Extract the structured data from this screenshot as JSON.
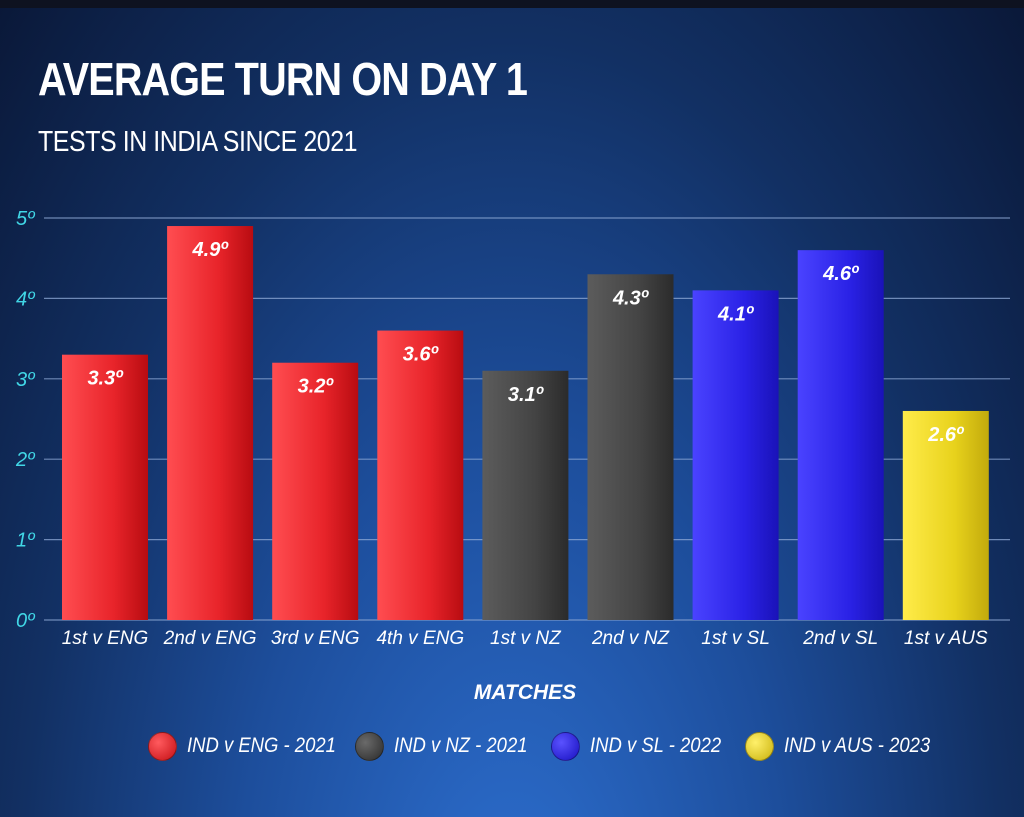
{
  "chart_data": {
    "type": "bar",
    "title": "AVERAGE TURN ON DAY 1",
    "subtitle": "TESTS IN INDIA SINCE 2021",
    "xlabel": "MATCHES",
    "ylabel": "",
    "ylim": [
      0,
      5
    ],
    "y_ticks": [
      {
        "value": 0,
        "label": "0º"
      },
      {
        "value": 1,
        "label": "1º"
      },
      {
        "value": 2,
        "label": "2º"
      },
      {
        "value": 3,
        "label": "3º"
      },
      {
        "value": 4,
        "label": "4º"
      },
      {
        "value": 5,
        "label": "5º"
      }
    ],
    "grid": true,
    "legend_position": "bottom",
    "categories": [
      "1st v ENG",
      "2nd v ENG",
      "3rd v ENG",
      "4th v ENG",
      "1st v NZ",
      "2nd v NZ",
      "1st v SL",
      "2nd v SL",
      "1st v AUS"
    ],
    "values": [
      3.3,
      4.9,
      3.2,
      3.6,
      3.1,
      4.3,
      4.1,
      4.6,
      2.6
    ],
    "data_labels": [
      "3.3º",
      "4.9º",
      "3.2º",
      "3.6º",
      "3.1º",
      "4.3º",
      "4.1º",
      "4.6º",
      "2.6º"
    ],
    "bar_series": [
      0,
      0,
      0,
      0,
      1,
      1,
      2,
      2,
      3
    ],
    "series": [
      {
        "name": "IND v ENG - 2021",
        "color": "#e8242a"
      },
      {
        "name": "IND v NZ - 2021",
        "color": "#444444"
      },
      {
        "name": "IND v SL - 2022",
        "color": "#2a22e6"
      },
      {
        "name": "IND v AUS - 2023",
        "color": "#e8d21c"
      }
    ]
  },
  "colors": {
    "tick_label": "#41d7e6",
    "grid": "#8fa9d6",
    "text": "#ffffff"
  }
}
